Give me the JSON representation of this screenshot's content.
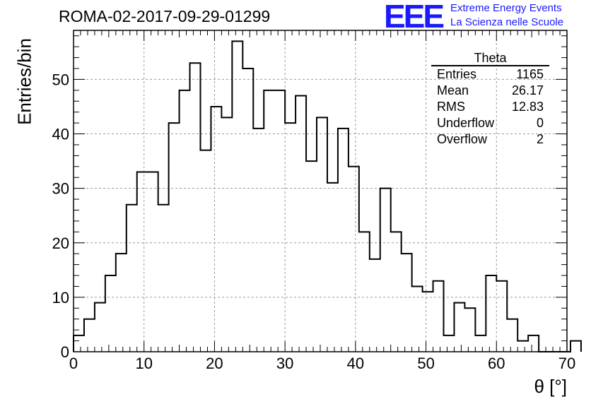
{
  "run_title": "ROMA-02-2017-09-29-01299",
  "logo": {
    "mark": "EEE",
    "line1": "Extreme Energy Events",
    "line2": "La Scienza nelle Scuole",
    "color": "#1a1aff"
  },
  "stats_box": {
    "title": "Theta",
    "rows": [
      {
        "label": "Entries",
        "value": "1165"
      },
      {
        "label": "Mean",
        "value": "26.17"
      },
      {
        "label": "RMS",
        "value": "12.83"
      },
      {
        "label": "Underflow",
        "value": "0"
      },
      {
        "label": "Overflow",
        "value": "2"
      }
    ]
  },
  "chart_data": {
    "type": "bar",
    "style": "step-histogram",
    "title": "ROMA-02-2017-09-29-01299",
    "xlabel": "θ [°]",
    "ylabel": "Entries/bin",
    "xlim": [
      0,
      70
    ],
    "ylim": [
      0,
      59
    ],
    "bin_width": 1.5,
    "bin_start": 0,
    "xticks": [
      0,
      10,
      20,
      30,
      40,
      50,
      60,
      70
    ],
    "yticks": [
      0,
      10,
      20,
      30,
      40,
      50
    ],
    "grid": true,
    "legend": "none",
    "values": [
      3,
      6,
      9,
      14,
      18,
      27,
      33,
      33,
      27,
      42,
      48,
      53,
      37,
      45,
      43,
      57,
      52,
      41,
      48,
      48,
      42,
      47,
      35,
      43,
      31,
      41,
      34,
      22,
      17,
      30,
      22,
      18,
      12,
      11,
      13,
      3,
      9,
      8,
      3,
      14,
      13,
      6,
      2,
      3,
      0,
      0,
      0,
      2
    ]
  }
}
